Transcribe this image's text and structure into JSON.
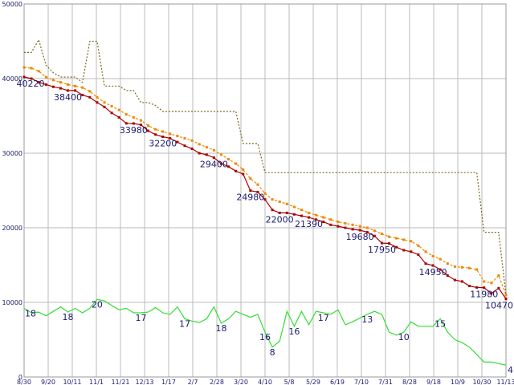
{
  "chart_data": {
    "type": "line",
    "title": "",
    "xlabel": "",
    "ylabel": "",
    "ylim": [
      0,
      50000
    ],
    "grid": true,
    "y_ticks": [
      "0",
      "10000",
      "20000",
      "30000",
      "40000",
      "50000"
    ],
    "x_tick_labels": [
      "8/30",
      "9/20",
      "10/11",
      "11/1",
      "11/21",
      "12/13",
      "1/17",
      "2/7",
      "2/28",
      "3/20",
      "4/10",
      "5/8",
      "5/29",
      "6/19",
      "7/10",
      "7/31",
      "8/28",
      "9/18",
      "10/9",
      "10/30",
      "11/13"
    ],
    "series": [
      {
        "name": "",
        "color": "#aa0000",
        "style": "solid-markers",
        "values": [
          40220,
          40000,
          39500,
          39200,
          38900,
          38700,
          38400,
          38400,
          37800,
          37500,
          36800,
          36200,
          35400,
          34800,
          34000,
          33980,
          33800,
          33000,
          32500,
          32200,
          32000,
          31500,
          31000,
          30600,
          30000,
          29800,
          29400,
          28600,
          28200,
          27600,
          27200,
          24980,
          24800,
          23800,
          22400,
          22000,
          22000,
          21800,
          21600,
          21390,
          21100,
          20800,
          20400,
          20200,
          20000,
          19800,
          19680,
          19400,
          18900,
          17950,
          17900,
          17400,
          17000,
          16800,
          16400,
          15200,
          14950,
          14400,
          13600,
          13000,
          12800,
          12200,
          12000,
          11980,
          11200,
          11900,
          10470
        ]
      },
      {
        "name": "",
        "color": "#ee8800",
        "style": "dashed-markers",
        "values": [
          41500,
          41400,
          41000,
          40200,
          39800,
          39500,
          39200,
          39000,
          38800,
          38300,
          37500,
          36800,
          36300,
          35800,
          35200,
          34800,
          34400,
          33700,
          33200,
          32900,
          32600,
          32300,
          32000,
          31700,
          31200,
          30800,
          30400,
          29800,
          29200,
          28600,
          27800,
          26600,
          25800,
          24600,
          23800,
          23500,
          23200,
          22800,
          22400,
          22000,
          21700,
          21400,
          21100,
          20800,
          20600,
          20400,
          20200,
          20000,
          19600,
          19200,
          18800,
          18600,
          18400,
          18200,
          17600,
          16800,
          16200,
          15800,
          15200,
          14800,
          14700,
          14600,
          14400,
          12800,
          12600,
          13600,
          11000
        ]
      },
      {
        "name": "",
        "color": "#7a6a1a",
        "style": "dotted",
        "values": [
          43500,
          43500,
          45200,
          41800,
          40800,
          40200,
          40200,
          40200,
          39500,
          45000,
          45000,
          39000,
          39000,
          39000,
          38400,
          38400,
          36800,
          36800,
          36400,
          35600,
          35600,
          35600,
          35600,
          35600,
          35600,
          35600,
          35600,
          35600,
          35600,
          35600,
          31300,
          31300,
          31300,
          27400,
          27400,
          27400,
          27400,
          27400,
          27400,
          27400,
          27400,
          27400,
          27400,
          27400,
          27400,
          27400,
          27400,
          27400,
          27400,
          27400,
          27400,
          27400,
          27400,
          27400,
          27400,
          27400,
          27400,
          27400,
          27400,
          27400,
          27400,
          27400,
          27400,
          19400,
          19400,
          19400,
          11000
        ]
      },
      {
        "name": "",
        "color": "#33dd33",
        "style": "solid",
        "values": [
          9200,
          8600,
          8700,
          8200,
          8800,
          9400,
          8700,
          9200,
          8600,
          9200,
          10400,
          10200,
          9600,
          9000,
          9200,
          8600,
          8600,
          8700,
          9300,
          8600,
          8400,
          9400,
          7800,
          7500,
          7300,
          7800,
          9400,
          7200,
          7800,
          8800,
          8400,
          8000,
          8400,
          6000,
          4000,
          4800,
          8800,
          6800,
          8800,
          7000,
          8800,
          8600,
          8400,
          9000,
          7000,
          7400,
          7900,
          8400,
          8800,
          8400,
          6000,
          5600,
          6000,
          7400,
          6800,
          6800,
          6800,
          7800,
          6000,
          5000,
          4600,
          4000,
          3000,
          2000,
          2000,
          1800,
          1600
        ]
      }
    ],
    "annotations": [
      {
        "series": 0,
        "index": 0,
        "text": "40220"
      },
      {
        "series": 0,
        "index": 6,
        "text": "38400"
      },
      {
        "series": 0,
        "index": 15,
        "text": "33980"
      },
      {
        "series": 0,
        "index": 19,
        "text": "32200"
      },
      {
        "series": 0,
        "index": 26,
        "text": "29400"
      },
      {
        "series": 0,
        "index": 31,
        "text": "24980"
      },
      {
        "series": 0,
        "index": 35,
        "text": "22000"
      },
      {
        "series": 0,
        "index": 39,
        "text": "21390"
      },
      {
        "series": 0,
        "index": 46,
        "text": "19680"
      },
      {
        "series": 0,
        "index": 49,
        "text": "17950"
      },
      {
        "series": 0,
        "index": 56,
        "text": "14950"
      },
      {
        "series": 0,
        "index": 63,
        "text": "11980"
      },
      {
        "series": 0,
        "index": 66,
        "text": "10470"
      },
      {
        "series": 3,
        "index": 0,
        "text": "18"
      },
      {
        "series": 3,
        "index": 6,
        "text": "18"
      },
      {
        "series": 3,
        "index": 10,
        "text": "20"
      },
      {
        "series": 3,
        "index": 16,
        "text": "17"
      },
      {
        "series": 3,
        "index": 22,
        "text": "17"
      },
      {
        "series": 3,
        "index": 27,
        "text": "18"
      },
      {
        "series": 3,
        "index": 33,
        "text": "16"
      },
      {
        "series": 3,
        "index": 34,
        "text": "8"
      },
      {
        "series": 3,
        "index": 37,
        "text": "16"
      },
      {
        "series": 3,
        "index": 41,
        "text": "17"
      },
      {
        "series": 3,
        "index": 47,
        "text": "13"
      },
      {
        "series": 3,
        "index": 52,
        "text": "10"
      },
      {
        "series": 3,
        "index": 57,
        "text": "15"
      },
      {
        "series": 3,
        "index": 66,
        "text": "4"
      }
    ]
  }
}
